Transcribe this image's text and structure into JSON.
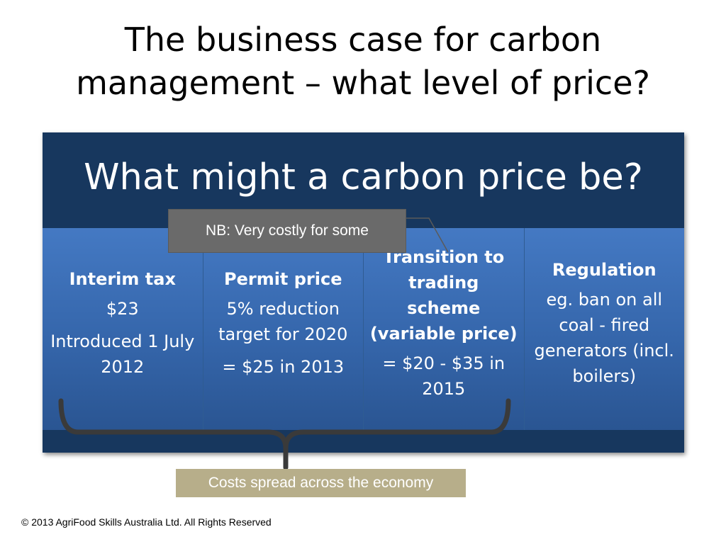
{
  "slide": {
    "title_lines": [
      "The business case for carbon",
      "management – what level of price?"
    ]
  },
  "panel": {
    "heading": "What might a carbon price be?",
    "columns": [
      {
        "heading": "Interim tax",
        "lines": [
          "$23",
          "Introduced 1 July 2012"
        ]
      },
      {
        "heading": "Permit price",
        "lines": [
          "5% reduction target for 2020",
          "= $25 in 2013"
        ]
      },
      {
        "heading": "Transition to trading scheme (variable price)",
        "lines": [
          "= $20 - $35 in 2015"
        ]
      },
      {
        "heading": "Regulation",
        "lines": [
          "eg. ban on all coal - fired generators (incl. boilers)"
        ]
      }
    ]
  },
  "callouts": {
    "nb": "NB: Very costly for some",
    "costs": "Costs spread across the economy"
  },
  "footer": {
    "copyright": "© 2013 AgriFood Skills Australia Ltd. All Rights Reserved"
  },
  "colors": {
    "panel_dark": "#17375e",
    "column_blue": "#3a6db5",
    "nb_box": "#6a6a6a",
    "costs_box": "#b7ae8a"
  }
}
